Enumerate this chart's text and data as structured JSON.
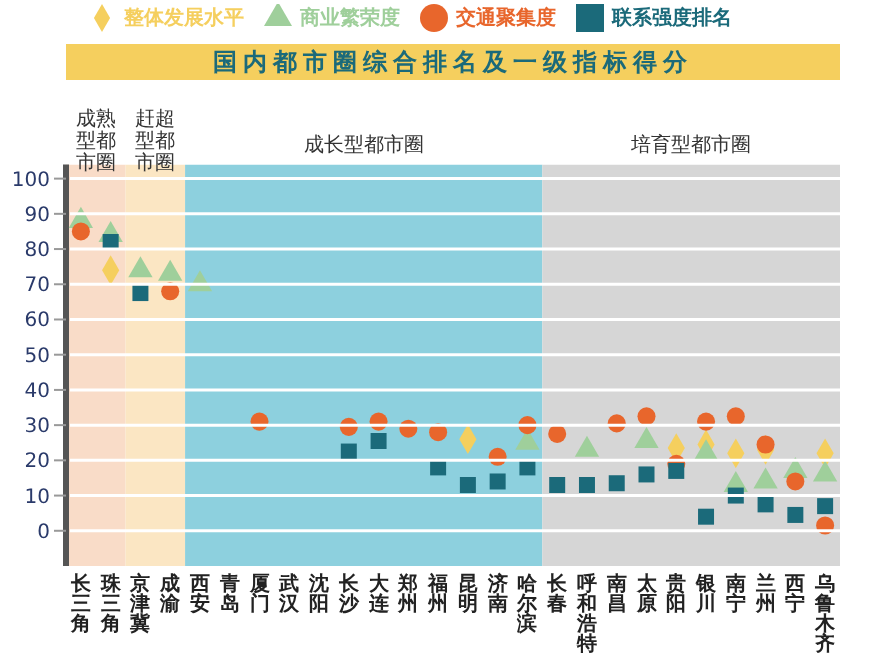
{
  "chart_data": {
    "type": "scatter",
    "title": "国内都市圈综合排名及一级指标得分",
    "categories": [
      "长三角",
      "珠三角",
      "京津冀",
      "成渝",
      "西安",
      "青岛",
      "厦门",
      "武汉",
      "沈阳",
      "长沙",
      "大连",
      "郑州",
      "福州",
      "昆明",
      "济南",
      "哈尔滨",
      "长春",
      "呼和浩特",
      "南昌",
      "太原",
      "贵阳",
      "银川",
      "南宁",
      "兰州",
      "西宁",
      "乌鲁木齐"
    ],
    "series": [
      {
        "name": "整体发展水平",
        "color": "#f5cf5e",
        "marker": "diamond",
        "values": [
          null,
          74,
          null,
          null,
          null,
          null,
          null,
          null,
          null,
          null,
          null,
          null,
          null,
          26,
          null,
          null,
          null,
          null,
          null,
          null,
          23.5,
          24.5,
          22,
          23,
          null,
          22
        ]
      },
      {
        "name": "商业繁荣度",
        "color": "#9fcf9b",
        "marker": "triangle",
        "values": [
          88,
          84,
          74,
          73,
          70,
          null,
          null,
          null,
          null,
          null,
          null,
          null,
          null,
          null,
          null,
          25,
          null,
          23,
          null,
          25.5,
          null,
          22,
          13,
          14,
          17,
          16
        ]
      },
      {
        "name": "交通聚集度",
        "color": "#e8662c",
        "marker": "circle",
        "values": [
          85,
          null,
          null,
          68,
          null,
          null,
          31,
          null,
          null,
          29.5,
          31,
          29,
          28,
          null,
          21,
          30,
          27.5,
          null,
          30.5,
          32.5,
          19,
          31,
          32.5,
          24.5,
          14,
          1.5
        ]
      },
      {
        "name": "联系强度排名",
        "color": "#1b6a7a",
        "marker": "square",
        "values": [
          null,
          82,
          67.5,
          null,
          null,
          null,
          null,
          null,
          null,
          22.5,
          25.5,
          null,
          18,
          13,
          14,
          18,
          13,
          13,
          13.5,
          16,
          17,
          4,
          10,
          7.5,
          4.5,
          7
        ]
      }
    ],
    "bands": [
      {
        "axis": "x",
        "from": "长三角",
        "to": "珠三角",
        "label": "成熟型都市圈",
        "color": "#f9dcc8"
      },
      {
        "axis": "x",
        "from": "京津冀",
        "to": "成渝",
        "label": "赶超型都市圈",
        "color": "#fbe6c3"
      },
      {
        "axis": "x",
        "from": "西安",
        "to": "哈尔滨",
        "label": "成长型都市圈",
        "color": "#8dd0de"
      },
      {
        "axis": "x",
        "from": "长春",
        "to": "乌鲁木齐",
        "label": "培育型都市圈",
        "color": "#d6d6d6"
      }
    ],
    "ylim": [
      -10,
      104
    ],
    "yticks": [
      0,
      10,
      20,
      30,
      40,
      50,
      60,
      70,
      80,
      90,
      100
    ],
    "grid": "y",
    "legend": "top"
  }
}
